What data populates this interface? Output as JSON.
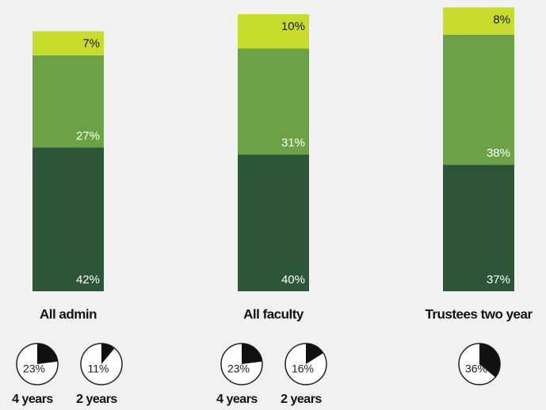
{
  "chart_data": [
    {
      "type": "bar",
      "stacked": true,
      "categories": [
        "All admin",
        "All faculty",
        "Trustees two year"
      ],
      "series": [
        {
          "color": "#2d5638",
          "values": [
            42,
            40,
            37
          ],
          "value_labels": [
            "42%",
            "40%",
            "37%"
          ],
          "label_color": "#ffffff"
        },
        {
          "color": "#6ba246",
          "values": [
            27,
            31,
            38
          ],
          "value_labels": [
            "27%",
            "31%",
            "38%"
          ],
          "label_color": "#ffffff"
        },
        {
          "color": "#c8dc2c",
          "values": [
            7,
            10,
            8
          ],
          "value_labels": [
            "7%",
            "10%",
            "8%"
          ],
          "label_color": "#1a1a1a"
        }
      ],
      "ylim": [
        0,
        84
      ]
    },
    {
      "type": "pie",
      "categories": [
        "4 years",
        "2 years",
        "4 years",
        "2 years",
        null
      ],
      "values": [
        23,
        11,
        23,
        16,
        36
      ],
      "value_labels": [
        "23%",
        "11%",
        "23%",
        "16%",
        "36%"
      ],
      "color": "#111111"
    }
  ]
}
